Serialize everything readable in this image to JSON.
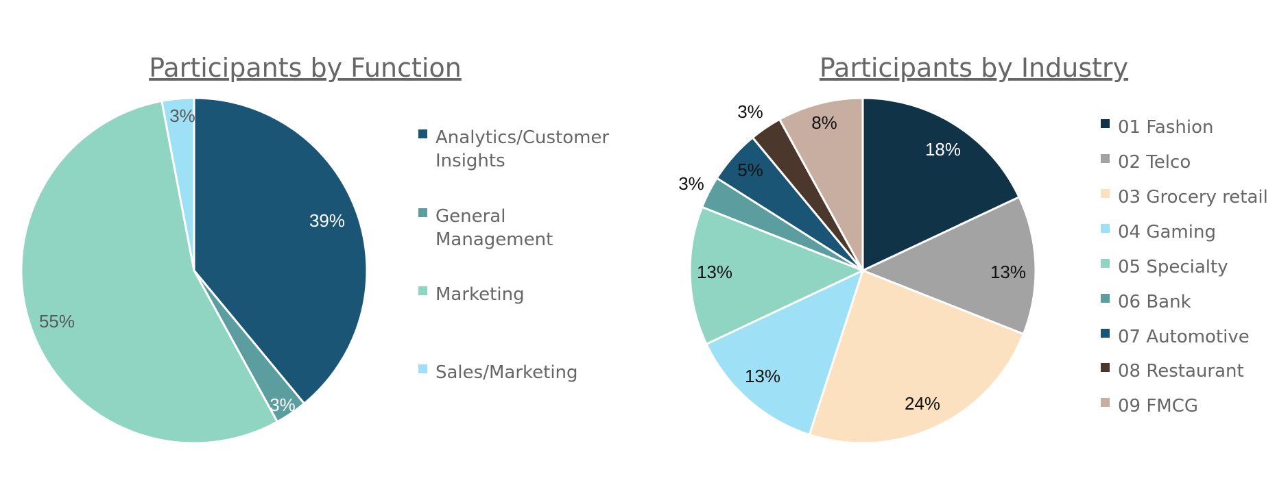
{
  "chart_data": [
    {
      "type": "pie",
      "title": "Participants by Function",
      "legend_position": "right",
      "slices": [
        {
          "label": "Analytics/Customer Insights",
          "legend_lines": [
            "Analytics/Customer",
            "Insights"
          ],
          "value": 39,
          "display": "39%",
          "color": "#1a5575",
          "label_color": "#ffffff"
        },
        {
          "label": "General Management",
          "legend_lines": [
            "General",
            "Management"
          ],
          "value": 3,
          "display": "3%",
          "color": "#5c9ea0",
          "label_color": "#ffffff"
        },
        {
          "label": "Marketing",
          "legend_lines": [
            "Marketing"
          ],
          "value": 55,
          "display": "55%",
          "color": "#90d4c2",
          "label_color": "#595959"
        },
        {
          "label": "Sales/Marketing",
          "legend_lines": [
            "Sales/Marketing"
          ],
          "value": 3,
          "display": "3%",
          "color": "#9ee0f5",
          "label_color": "#595959"
        }
      ]
    },
    {
      "type": "pie",
      "title": "Participants by Industry",
      "legend_position": "right",
      "slices": [
        {
          "label": "01 Fashion",
          "legend_lines": [
            "01 Fashion"
          ],
          "value": 18,
          "display": "18%",
          "color": "#113347",
          "label_color": "#ffffff"
        },
        {
          "label": "02 Telco",
          "legend_lines": [
            "02 Telco"
          ],
          "value": 13,
          "display": "13%",
          "color": "#a3a3a3",
          "label_color": "#111111"
        },
        {
          "label": "03 Grocery retail",
          "legend_lines": [
            "03 Grocery retail"
          ],
          "value": 24,
          "display": "24%",
          "color": "#fbe1bf",
          "label_color": "#111111"
        },
        {
          "label": "04 Gaming",
          "legend_lines": [
            "04 Gaming"
          ],
          "value": 13,
          "display": "13%",
          "color": "#9ee0f5",
          "label_color": "#111111"
        },
        {
          "label": "05 Specialty",
          "legend_lines": [
            "05 Specialty"
          ],
          "value": 13,
          "display": "13%",
          "color": "#90d4c2",
          "label_color": "#111111"
        },
        {
          "label": "06 Bank",
          "legend_lines": [
            "06 Bank"
          ],
          "value": 3,
          "display": "3%",
          "color": "#5c9ea0",
          "label_color": "#111111"
        },
        {
          "label": "07 Automotive",
          "legend_lines": [
            "07 Automotive"
          ],
          "value": 5,
          "display": "5%",
          "color": "#1a5575",
          "label_color": "#111111"
        },
        {
          "label": "08 Restaurant",
          "legend_lines": [
            "08 Restaurant"
          ],
          "value": 3,
          "display": "3%",
          "color": "#4c372c",
          "label_color": "#111111"
        },
        {
          "label": "09 FMCG",
          "legend_lines": [
            "09 FMCG"
          ],
          "value": 8,
          "display": "8%",
          "color": "#c8aea0",
          "label_color": "#111111"
        }
      ]
    }
  ]
}
